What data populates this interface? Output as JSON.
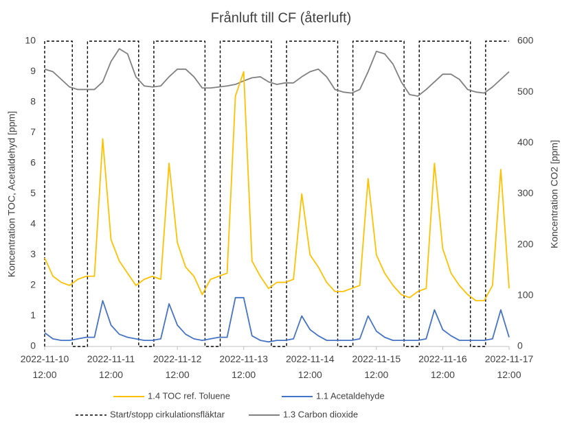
{
  "chart_data": {
    "type": "line",
    "title": "Frånluft till CF (återluft)",
    "y_label": "Koncentration TOC, Acetaldehyd [ppm]",
    "y2_label": "Koncentration CO2 [ppm]",
    "xlim": [
      "2022-11-10 12:00",
      "2022-11-17 12:00"
    ],
    "xticks": [
      "2022-11-10 12:00",
      "2022-11-11 12:00",
      "2022-11-12 12:00",
      "2022-11-13 12:00",
      "2022-11-14 12:00",
      "2022-11-15 12:00",
      "2022-11-16 12:00",
      "2022-11-17 12:00"
    ],
    "ylim": [
      0,
      10
    ],
    "yticks": [
      0,
      1,
      2,
      3,
      4,
      5,
      6,
      7,
      8,
      9,
      10
    ],
    "y2lim": [
      0,
      600
    ],
    "y2ticks": [
      0,
      100,
      200,
      300,
      400,
      500,
      600
    ],
    "grid": false,
    "x": [
      "2022-11-10 12:00",
      "2022-11-10 15:00",
      "2022-11-10 18:00",
      "2022-11-10 21:00",
      "2022-11-11 00:00",
      "2022-11-11 03:00",
      "2022-11-11 06:00",
      "2022-11-11 09:00",
      "2022-11-11 12:00",
      "2022-11-11 15:00",
      "2022-11-11 18:00",
      "2022-11-11 21:00",
      "2022-11-12 00:00",
      "2022-11-12 03:00",
      "2022-11-12 06:00",
      "2022-11-12 09:00",
      "2022-11-12 12:00",
      "2022-11-12 15:00",
      "2022-11-12 18:00",
      "2022-11-12 21:00",
      "2022-11-13 00:00",
      "2022-11-13 03:00",
      "2022-11-13 06:00",
      "2022-11-13 09:00",
      "2022-11-13 12:00",
      "2022-11-13 15:00",
      "2022-11-13 18:00",
      "2022-11-13 21:00",
      "2022-11-14 00:00",
      "2022-11-14 03:00",
      "2022-11-14 06:00",
      "2022-11-14 09:00",
      "2022-11-14 12:00",
      "2022-11-14 15:00",
      "2022-11-14 18:00",
      "2022-11-14 21:00",
      "2022-11-15 00:00",
      "2022-11-15 03:00",
      "2022-11-15 06:00",
      "2022-11-15 09:00",
      "2022-11-15 12:00",
      "2022-11-15 15:00",
      "2022-11-15 18:00",
      "2022-11-15 21:00",
      "2022-11-16 00:00",
      "2022-11-16 03:00",
      "2022-11-16 06:00",
      "2022-11-16 09:00",
      "2022-11-16 12:00",
      "2022-11-16 15:00",
      "2022-11-16 18:00",
      "2022-11-16 21:00",
      "2022-11-17 00:00",
      "2022-11-17 03:00",
      "2022-11-17 06:00",
      "2022-11-17 09:00",
      "2022-11-17 12:00"
    ],
    "series": [
      {
        "name": "1.4 TOC ref. Toluene",
        "color": "#ffc000",
        "values": [
          2.9,
          2.3,
          2.1,
          2.0,
          2.2,
          2.3,
          2.3,
          6.8,
          3.5,
          2.8,
          2.4,
          2.0,
          2.2,
          2.3,
          2.2,
          6.0,
          3.4,
          2.6,
          2.3,
          1.7,
          2.2,
          2.3,
          2.4,
          8.2,
          9.0,
          2.8,
          2.3,
          1.9,
          2.1,
          2.1,
          2.2,
          5.0,
          3.0,
          2.6,
          2.1,
          1.8,
          1.8,
          1.9,
          2.0,
          5.5,
          3.0,
          2.4,
          2.0,
          1.7,
          1.6,
          1.8,
          1.9,
          6.0,
          3.2,
          2.4,
          2.0,
          1.7,
          1.5,
          1.5,
          2.0,
          5.8,
          1.9
        ]
      },
      {
        "name": "1.1 Acetaldehyde",
        "color": "#4472c4",
        "values": [
          0.45,
          0.25,
          0.2,
          0.2,
          0.25,
          0.3,
          0.3,
          1.5,
          0.7,
          0.4,
          0.3,
          0.25,
          0.2,
          0.2,
          0.25,
          1.4,
          0.7,
          0.4,
          0.25,
          0.2,
          0.25,
          0.3,
          0.3,
          1.6,
          1.6,
          0.35,
          0.2,
          0.15,
          0.2,
          0.2,
          0.25,
          1.0,
          0.55,
          0.35,
          0.2,
          0.2,
          0.2,
          0.2,
          0.25,
          1.0,
          0.5,
          0.3,
          0.2,
          0.2,
          0.2,
          0.2,
          0.25,
          1.2,
          0.55,
          0.35,
          0.2,
          0.2,
          0.2,
          0.2,
          0.25,
          1.2,
          0.3
        ]
      },
      {
        "name": "Start/stopp cirkulationsfläktar",
        "color": "#000000",
        "dashed": true,
        "x": [
          "2022-11-10 12:00",
          "2022-11-10 12:00",
          "2022-11-10 22:00",
          "2022-11-10 22:00",
          "2022-11-11 03:30",
          "2022-11-11 03:30",
          "2022-11-11 22:00",
          "2022-11-11 22:00",
          "2022-11-12 03:30",
          "2022-11-12 03:30",
          "2022-11-12 22:00",
          "2022-11-12 22:00",
          "2022-11-13 03:30",
          "2022-11-13 03:30",
          "2022-11-13 22:00",
          "2022-11-13 22:00",
          "2022-11-14 03:30",
          "2022-11-14 03:30",
          "2022-11-14 22:00",
          "2022-11-14 22:00",
          "2022-11-15 03:30",
          "2022-11-15 03:30",
          "2022-11-15 22:00",
          "2022-11-15 22:00",
          "2022-11-16 03:30",
          "2022-11-16 03:30",
          "2022-11-16 22:00",
          "2022-11-16 22:00",
          "2022-11-17 03:30",
          "2022-11-17 03:30",
          "2022-11-17 12:00"
        ],
        "values": [
          0,
          10,
          10,
          0,
          0,
          10,
          10,
          0,
          0,
          10,
          10,
          0,
          0,
          10,
          10,
          0,
          0,
          10,
          10,
          0,
          0,
          10,
          10,
          0,
          0,
          10,
          10,
          0,
          0,
          10,
          10
        ]
      },
      {
        "name": "1.3 Carbon dioxide",
        "color": "#7f7f7f",
        "axis": "y2",
        "values": [
          545,
          540,
          525,
          510,
          505,
          505,
          505,
          520,
          560,
          585,
          575,
          530,
          512,
          510,
          512,
          530,
          545,
          545,
          530,
          508,
          508,
          510,
          512,
          515,
          522,
          528,
          530,
          520,
          515,
          518,
          518,
          530,
          540,
          545,
          530,
          505,
          500,
          498,
          505,
          540,
          580,
          575,
          555,
          520,
          495,
          492,
          505,
          520,
          535,
          535,
          525,
          505,
          500,
          498,
          510,
          525,
          540
        ]
      }
    ]
  }
}
